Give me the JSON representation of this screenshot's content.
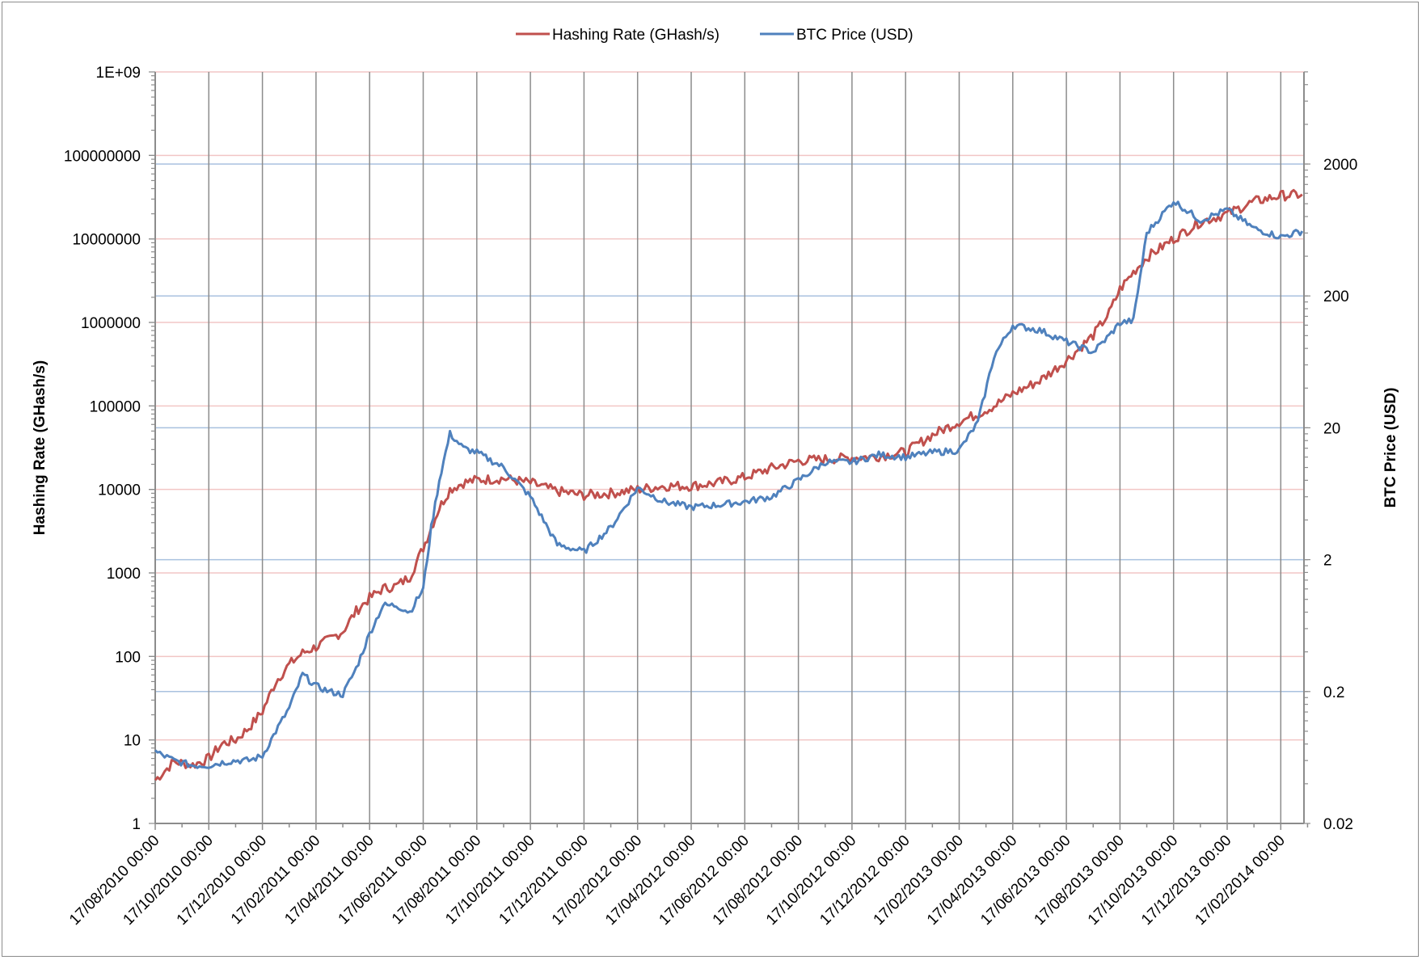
{
  "chart_data": {
    "type": "line",
    "title": "",
    "legend_position": "top",
    "legend": [
      "Hashing Rate (GHash/s)",
      "BTC Price (USD)"
    ],
    "colors": {
      "hash": "#c0504d",
      "price": "#4f81bd",
      "hash_grid": "#f2c6c5",
      "price_grid": "#a9c1df",
      "vgrid": "#8c8c8c",
      "axis": "#8c8c8c"
    },
    "xlabel": "",
    "ylabel": "Hashing Rate (GHash/s)",
    "y2label": "BTC Price (USD)",
    "yscale": "log",
    "y2scale": "log",
    "ylim": [
      1,
      1000000000
    ],
    "y2lim": [
      0.02,
      10000
    ],
    "grid": true,
    "x_tick_labels": [
      "17/08/2010 00:00",
      "17/10/2010 00:00",
      "17/12/2010 00:00",
      "17/02/2011 00:00",
      "17/04/2011 00:00",
      "17/06/2011 00:00",
      "17/08/2011 00:00",
      "17/10/2011 00:00",
      "17/12/2011 00:00",
      "17/02/2012 00:00",
      "17/04/2012 00:00",
      "17/06/2012 00:00",
      "17/08/2012 00:00",
      "17/10/2012 00:00",
      "17/12/2012 00:00",
      "17/02/2013 00:00",
      "17/04/2013 00:00",
      "17/06/2013 00:00",
      "17/08/2013 00:00",
      "17/10/2013 00:00",
      "17/12/2013 00:00",
      "17/02/2014 00:00"
    ],
    "y_tick_labels": [
      "1",
      "10",
      "100",
      "1000",
      "10000",
      "100000",
      "1000000",
      "10000000",
      "100000000",
      "1E+09"
    ],
    "y2_tick_labels": [
      "0.02",
      "0.2",
      "2",
      "20",
      "200",
      "2000"
    ],
    "x_months": [
      0,
      0.7,
      1.4,
      2,
      2.5,
      3,
      3.5,
      4,
      4.5,
      5,
      5.5,
      6,
      6.5,
      7,
      7.5,
      8,
      8.5,
      9,
      9.5,
      10,
      10.3,
      10.6,
      11,
      11.5,
      12,
      13,
      14,
      15,
      16,
      17,
      18,
      19,
      20,
      21,
      22,
      23,
      24,
      25,
      26,
      27,
      28,
      29,
      30,
      30.7,
      31.3,
      32,
      33,
      34,
      35,
      35.6,
      36,
      36.5,
      37,
      38,
      39,
      40,
      41,
      42,
      42.8
    ],
    "series": [
      {
        "name": "Hashing Rate (GHash/s)",
        "values": [
          3.3,
          5.5,
          5,
          6,
          9,
          10,
          14,
          22,
          50,
          80,
          110,
          130,
          160,
          200,
          350,
          500,
          650,
          700,
          900,
          2000,
          3500,
          6000,
          10000,
          12000,
          13000,
          13500,
          12000,
          9500,
          8500,
          9000,
          10000,
          11000,
          11000,
          12000,
          14000,
          18000,
          22000,
          23000,
          24000,
          25000,
          28000,
          45000,
          65000,
          80000,
          100000,
          140000,
          200000,
          350000,
          700000,
          1300000,
          2500000,
          4000000,
          6000000,
          10000000,
          16000000,
          20000000,
          28000000,
          33000000,
          34000000
        ]
      },
      {
        "name": "BTC Price (USD)",
        "values": [
          0.07,
          0.06,
          0.055,
          0.055,
          0.058,
          0.06,
          0.06,
          0.065,
          0.1,
          0.15,
          0.27,
          0.22,
          0.2,
          0.19,
          0.3,
          0.55,
          0.9,
          0.9,
          0.8,
          1.2,
          3.5,
          8,
          18,
          14,
          13,
          10,
          6,
          2.6,
          2.3,
          3.5,
          7,
          5.5,
          5,
          5.2,
          5.5,
          6,
          8,
          11,
          11,
          12.5,
          12,
          13,
          13.5,
          22,
          70,
          120,
          110,
          90,
          75,
          100,
          125,
          130,
          600,
          1050,
          750,
          900,
          650,
          560,
          620
        ]
      }
    ]
  },
  "legend": {
    "hash_label": "Hashing Rate (GHash/s)",
    "price_label": "BTC Price (USD)"
  },
  "axes": {
    "left_title": "Hashing Rate (GHash/s)",
    "right_title": "BTC Price (USD)"
  }
}
